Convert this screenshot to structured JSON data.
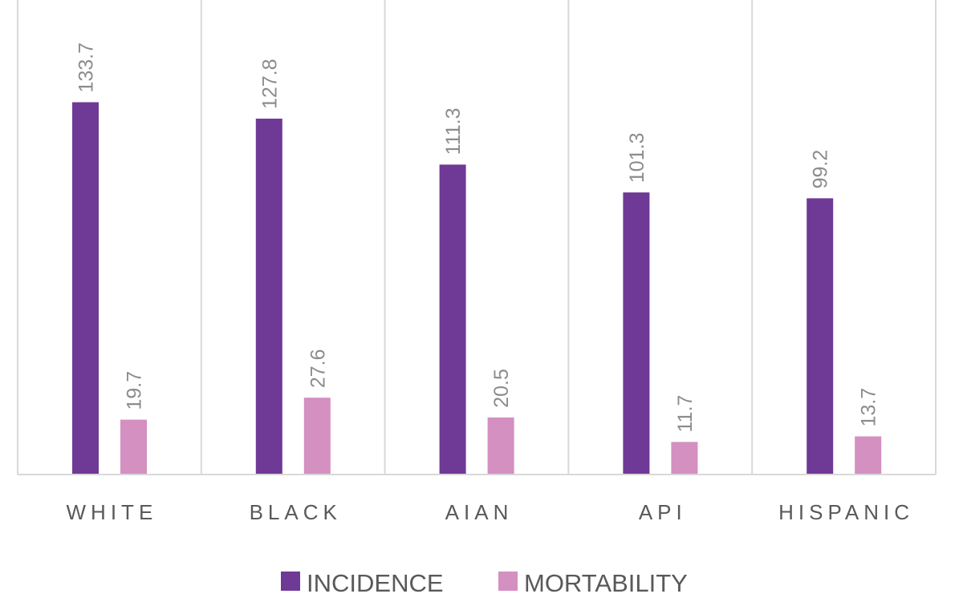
{
  "chart_data": {
    "type": "bar",
    "categories": [
      "WHITE",
      "BLACK",
      "AIAN",
      "API",
      "HISPANIC"
    ],
    "series": [
      {
        "name": "INCIDENCE",
        "values": [
          133.7,
          127.8,
          111.3,
          101.3,
          99.2
        ],
        "color": "#6f3996"
      },
      {
        "name": "MORTABILITY",
        "values": [
          19.7,
          27.6,
          20.5,
          11.7,
          13.7
        ],
        "color": "#d390c0"
      }
    ],
    "title": "",
    "xlabel": "",
    "ylabel": "",
    "ylim": [
      0,
      160
    ],
    "grid": "vertical category separators",
    "legend": "bottom-center",
    "data_labels": "rotated vertical above bars"
  }
}
